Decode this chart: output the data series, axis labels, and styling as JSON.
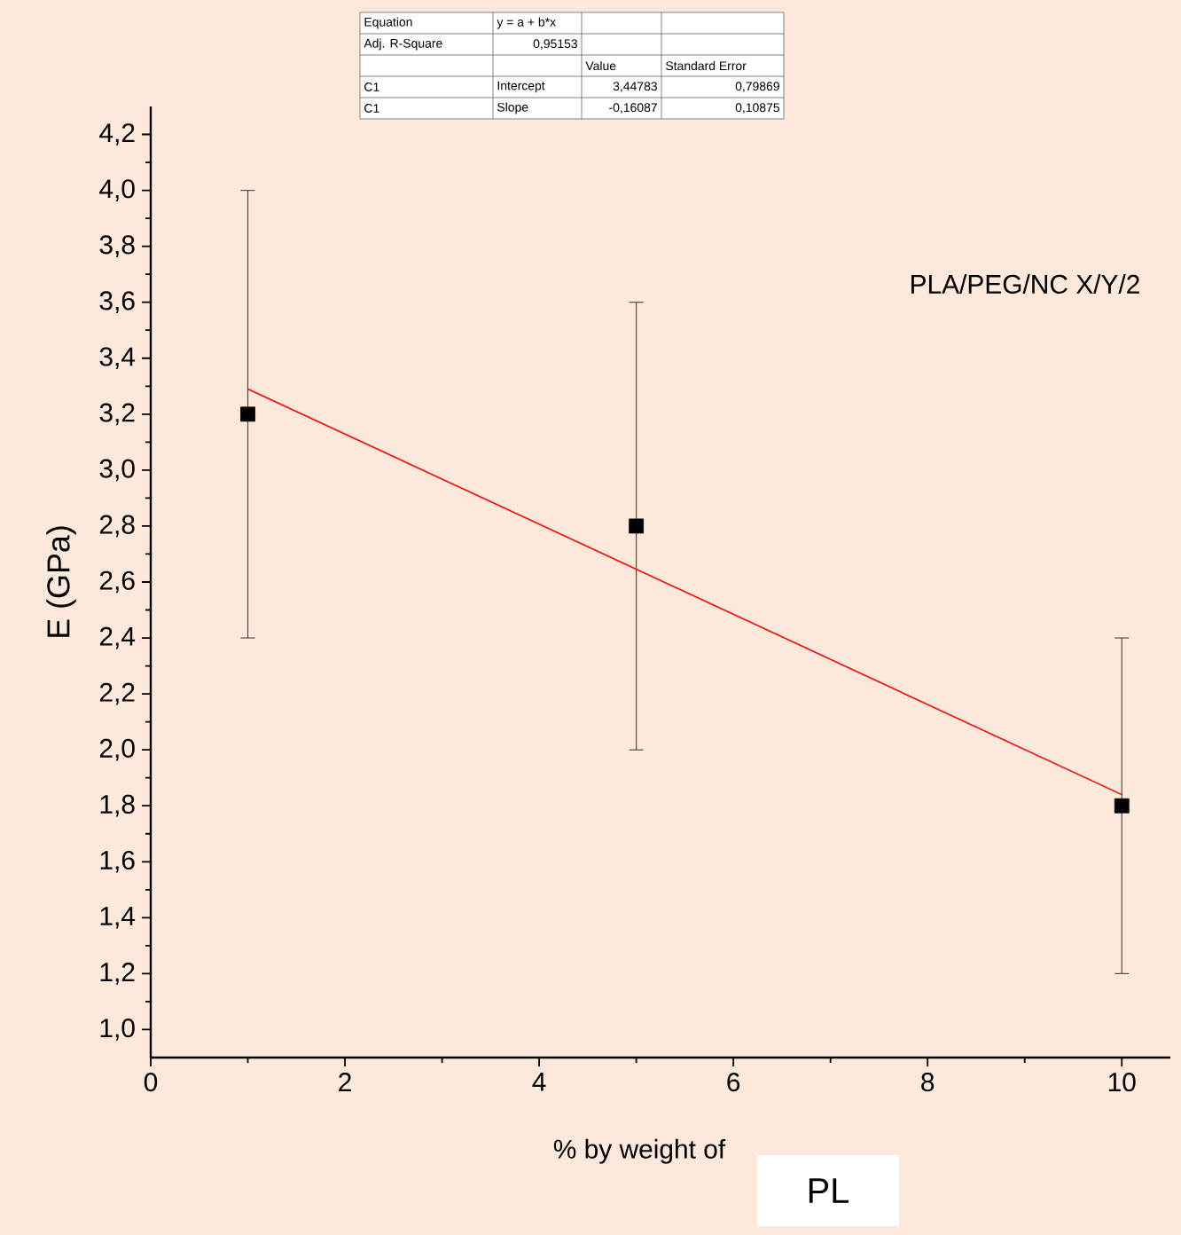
{
  "chart_data": {
    "type": "scatter",
    "xlabel": "% by weight of",
    "ylabel": "E (GPa)",
    "x": [
      1,
      5,
      10
    ],
    "series": [
      {
        "color": "#000000",
        "marker": "square",
        "values": [
          3.2,
          2.8,
          1.8
        ],
        "errors": [
          0.8,
          0.8,
          0.6
        ]
      },
      {
        "type": "line",
        "color": "#ff0000",
        "marker": "none",
        "x": [
          1,
          10
        ],
        "values": [
          3.29,
          1.84
        ]
      }
    ],
    "xlim": [
      0,
      10.5
    ],
    "xticks": [
      0,
      2,
      4,
      6,
      8,
      10
    ],
    "ylim": [
      0.9,
      4.3
    ],
    "yticks": [
      {
        "value": 1.0,
        "label": "1,0"
      },
      {
        "value": 1.2,
        "label": "1,2"
      },
      {
        "value": 1.4,
        "label": "1,4"
      },
      {
        "value": 1.6,
        "label": "1,6"
      },
      {
        "value": 1.8,
        "label": "1,8"
      },
      {
        "value": 2.0,
        "label": "2,0"
      },
      {
        "value": 2.2,
        "label": "2,2"
      },
      {
        "value": 2.4,
        "label": "2,4"
      },
      {
        "value": 2.6,
        "label": "2,6"
      },
      {
        "value": 2.8,
        "label": "2,8"
      },
      {
        "value": 3.0,
        "label": "3,0"
      },
      {
        "value": 3.2,
        "label": "3,2"
      },
      {
        "value": 3.4,
        "label": "3,4"
      },
      {
        "value": 3.6,
        "label": "3,6"
      },
      {
        "value": 3.8,
        "label": "3,8"
      },
      {
        "value": 4.0,
        "label": "4,0"
      },
      {
        "value": 4.2,
        "label": "4,2"
      }
    ],
    "grid": false,
    "annotations": [
      "Equation",
      "y = a + b*x",
      "Adj. R-Square",
      "0,95153",
      "Value",
      "Standard Error",
      "C1",
      "Intercept",
      "3,44783",
      "0,79869",
      "C1",
      "Slope",
      "-0,16087",
      "0,10875",
      "PLA/PEG/NC X/Y/2",
      "PL"
    ]
  }
}
